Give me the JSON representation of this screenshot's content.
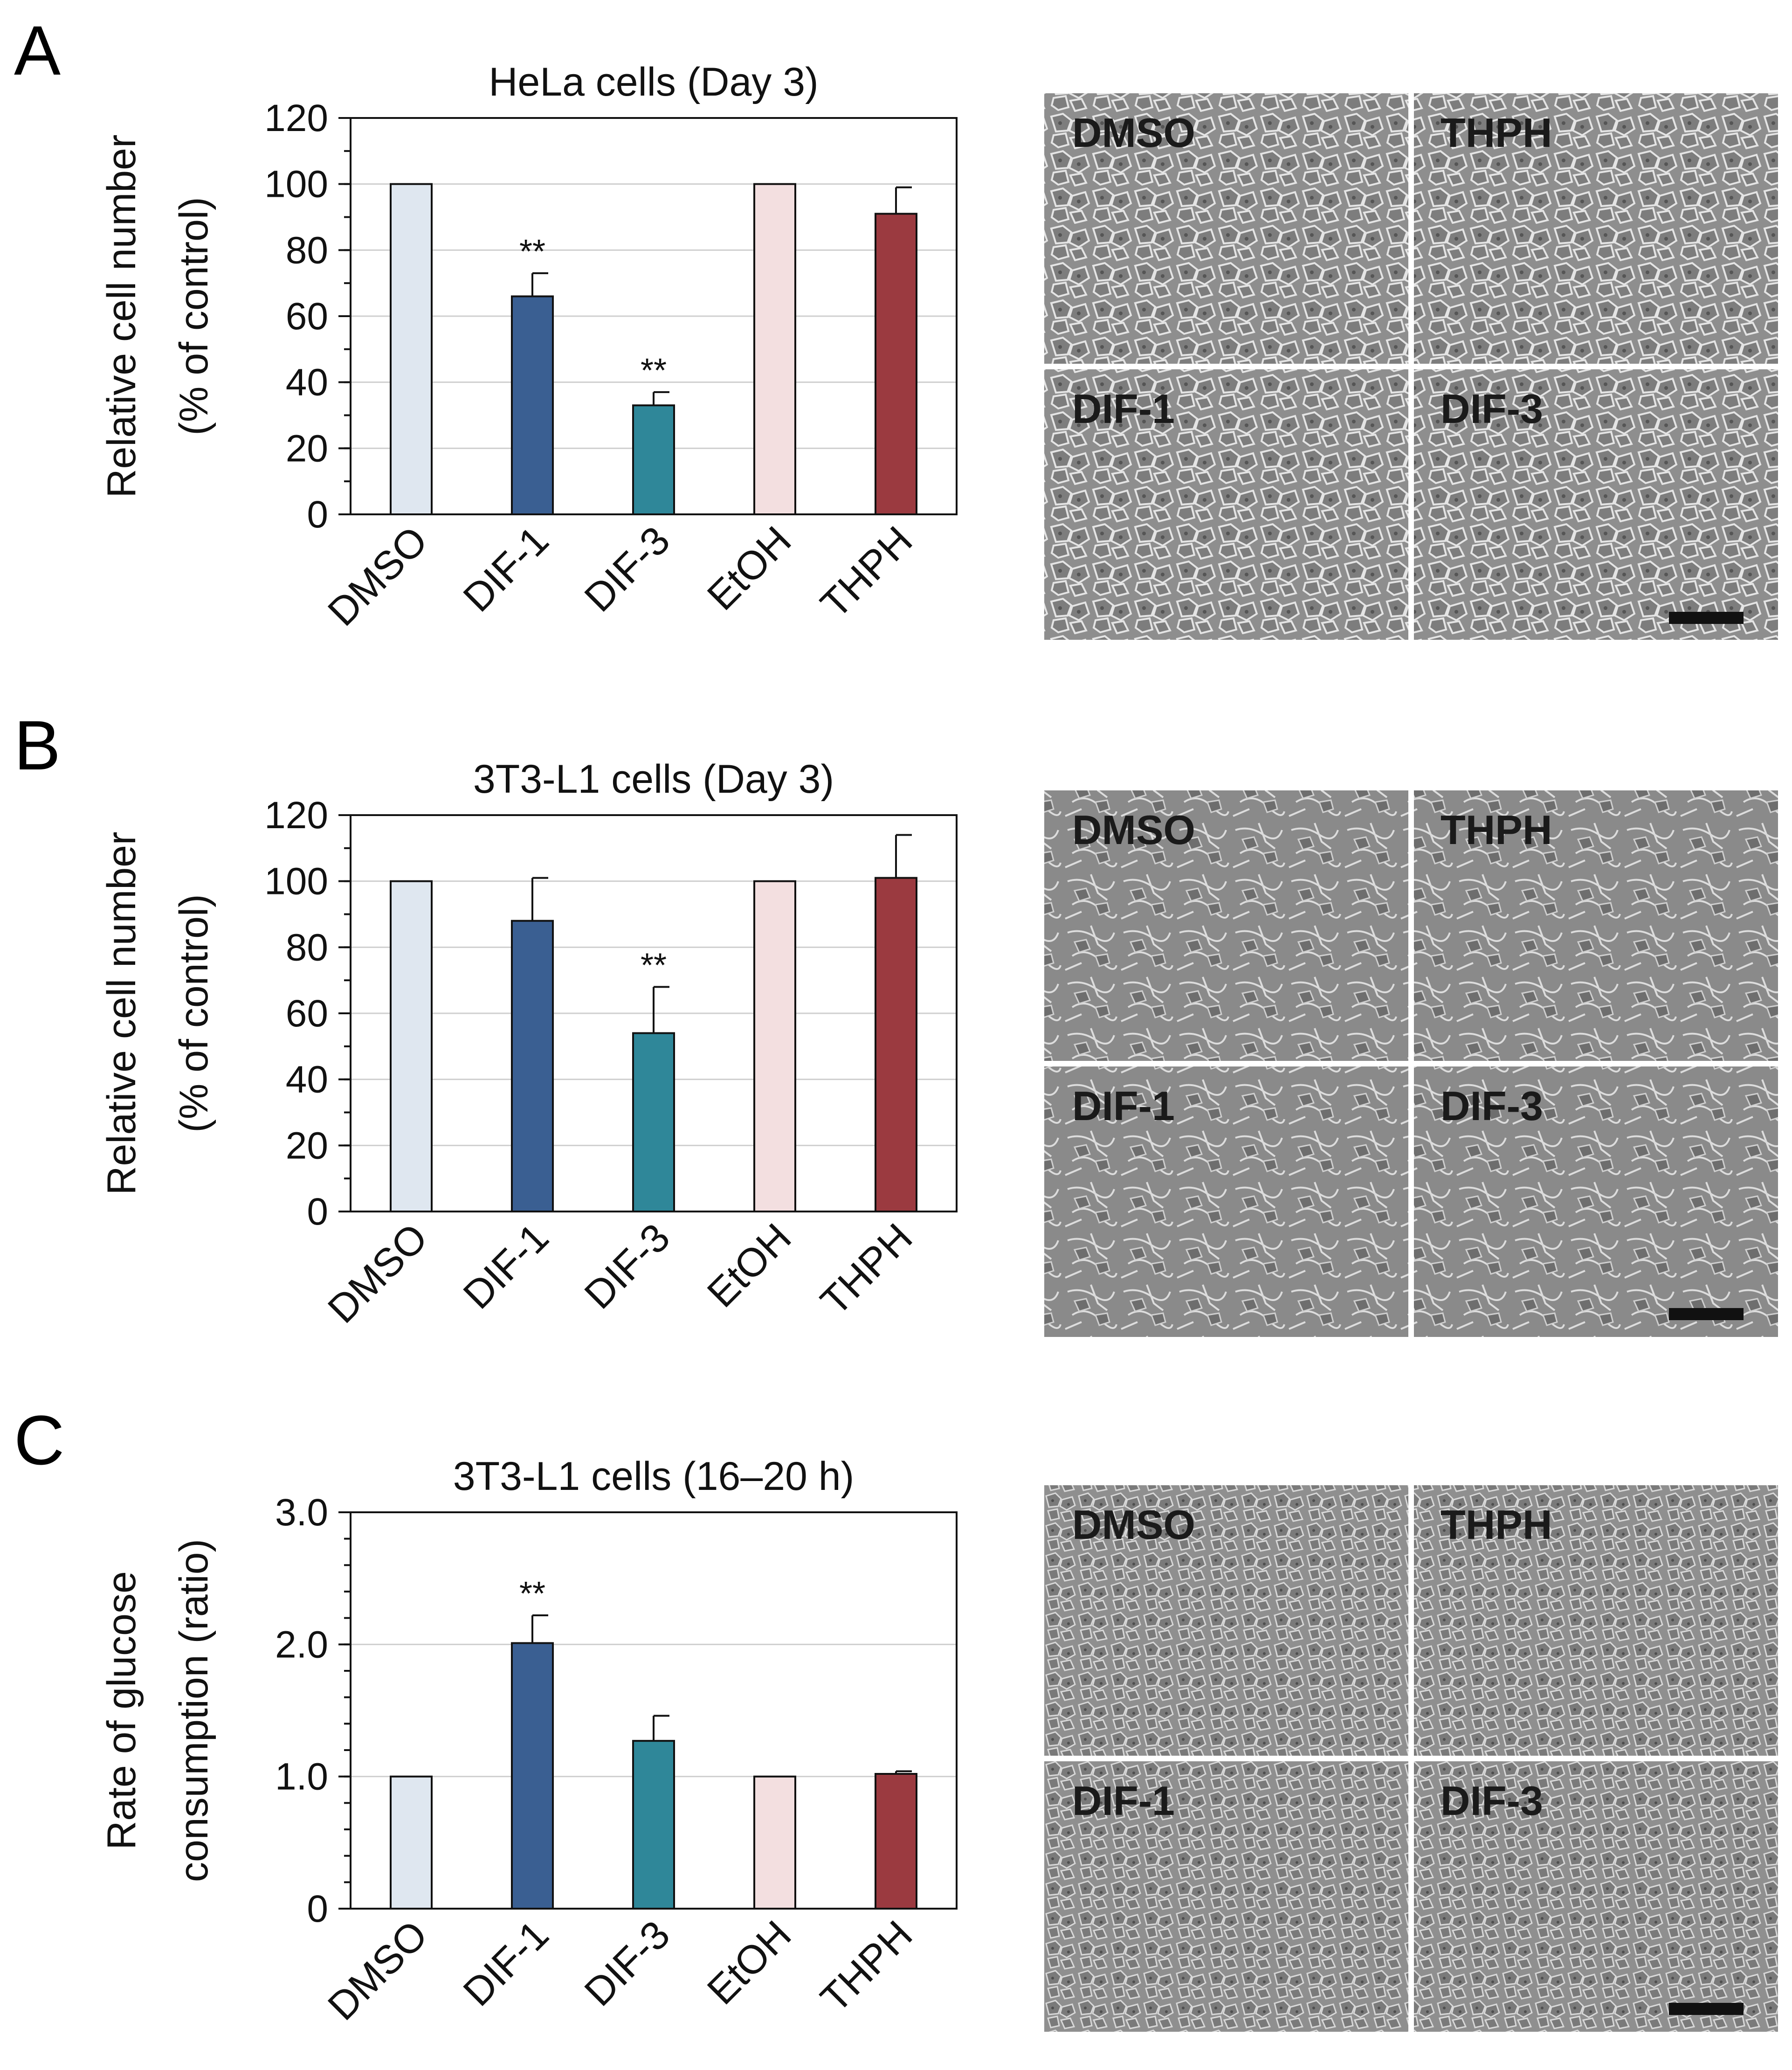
{
  "panels": [
    {
      "letter": "A",
      "micro_labels": [
        "DMSO",
        "THPH",
        "DIF-1",
        "DIF-3"
      ]
    },
    {
      "letter": "B",
      "micro_labels": [
        "DMSO",
        "THPH",
        "DIF-1",
        "DIF-3"
      ]
    },
    {
      "letter": "C",
      "micro_labels": [
        "DMSO",
        "THPH",
        "DIF-1",
        "DIF-3"
      ]
    }
  ],
  "colors": [
    "#dfe7f0",
    "#3a5f92",
    "#2f8799",
    "#f3dfe0",
    "#9b3a40"
  ],
  "chart_data": [
    {
      "type": "bar",
      "title": "HeLa cells (Day 3)",
      "categories": [
        "DMSO",
        "DIF-1",
        "DIF-3",
        "EtOH",
        "THPH"
      ],
      "values": [
        100,
        66,
        33,
        100,
        91
      ],
      "errors": [
        0,
        7,
        4,
        0,
        8
      ],
      "significance": [
        "",
        "**",
        "**",
        "",
        ""
      ],
      "ylabel": [
        "Relative cell number",
        "(% of control)"
      ],
      "ylim": [
        0,
        120
      ],
      "yticks": [
        "0",
        "20",
        "40",
        "60",
        "80",
        "100",
        "120"
      ],
      "ytick_values": [
        0,
        20,
        40,
        60,
        80,
        100,
        120
      ],
      "minor_step": 10,
      "grid": true
    },
    {
      "type": "bar",
      "title": "3T3-L1 cells (Day 3)",
      "categories": [
        "DMSO",
        "DIF-1",
        "DIF-3",
        "EtOH",
        "THPH"
      ],
      "values": [
        100,
        88,
        54,
        100,
        101
      ],
      "errors": [
        0,
        13,
        14,
        0,
        13
      ],
      "significance": [
        "",
        "",
        "**",
        "",
        ""
      ],
      "ylabel": [
        "Relative cell number",
        "(% of control)"
      ],
      "ylim": [
        0,
        120
      ],
      "yticks": [
        "0",
        "20",
        "40",
        "60",
        "80",
        "100",
        "120"
      ],
      "ytick_values": [
        0,
        20,
        40,
        60,
        80,
        100,
        120
      ],
      "minor_step": 10,
      "grid": true
    },
    {
      "type": "bar",
      "title": "3T3-L1 cells (16–20 h)",
      "categories": [
        "DMSO",
        "DIF-1",
        "DIF-3",
        "EtOH",
        "THPH"
      ],
      "values": [
        1.0,
        2.01,
        1.27,
        1.0,
        1.02
      ],
      "errors": [
        0,
        0.21,
        0.19,
        0,
        0.02
      ],
      "significance": [
        "",
        "**",
        "",
        "",
        ""
      ],
      "ylabel": [
        "Rate of glucose",
        "consumption (ratio)"
      ],
      "ylim": [
        0,
        3.0
      ],
      "yticks": [
        "0",
        "1.0",
        "2.0",
        "3.0"
      ],
      "ytick_values": [
        0,
        1.0,
        2.0,
        3.0
      ],
      "minor_step": 0.2,
      "grid": true
    }
  ]
}
